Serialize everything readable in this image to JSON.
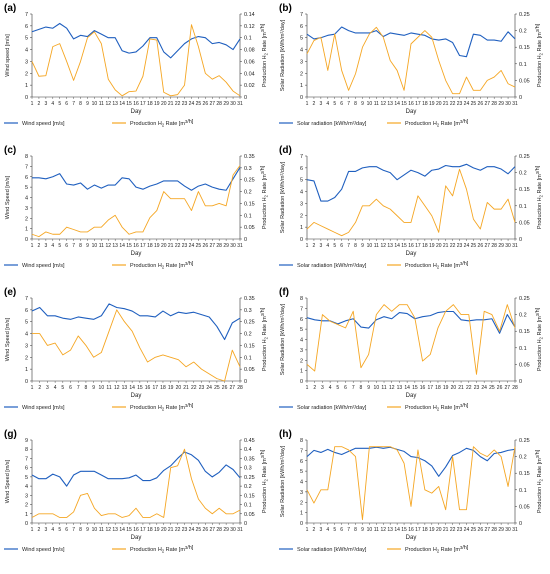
{
  "colors": {
    "primary": "#1f5fbf",
    "secondary": "#f5a623",
    "axis": "#333333",
    "grid": "#cccccc"
  },
  "x_label": "Day",
  "chart_data": [
    {
      "type": "line",
      "panel": "(a)",
      "legend": "bottom",
      "xlabel": "Day",
      "ylabel": "Wind speed [m/s]",
      "ylabel_right": "Production H2 Rate [m3/h]",
      "ylim": [
        0,
        7
      ],
      "yticks": [
        0,
        1,
        2,
        3,
        4,
        5,
        6,
        7
      ],
      "ylim_right": [
        0,
        0.14
      ],
      "yticks_right": [
        "0",
        "0.02",
        "0.04",
        "0.06",
        "0.08",
        "0.1",
        "0.12",
        "0.14"
      ],
      "x": [
        1,
        2,
        3,
        4,
        5,
        6,
        7,
        8,
        9,
        10,
        11,
        12,
        13,
        14,
        15,
        16,
        17,
        18,
        19,
        20,
        21,
        22,
        23,
        24,
        25,
        26,
        27,
        28,
        29,
        30,
        31
      ],
      "series": [
        {
          "name": "Wind speed [m/s]",
          "axis": "left",
          "color": "#1f5fbf",
          "values": [
            5.5,
            5.7,
            5.9,
            5.8,
            6.2,
            5.8,
            4.9,
            5.2,
            5.1,
            5.6,
            5.3,
            5.0,
            5.0,
            3.9,
            3.7,
            3.8,
            4.3,
            5.0,
            5.0,
            3.8,
            3.3,
            3.9,
            4.5,
            4.9,
            5.1,
            5.0,
            4.5,
            4.6,
            4.4,
            4.0,
            4.9
          ]
        },
        {
          "name": "Production H2 Rate [m3/h]",
          "axis": "right",
          "color": "#f5a623",
          "values": [
            0.06,
            0.035,
            0.036,
            0.085,
            0.09,
            0.06,
            0.028,
            0.06,
            0.1,
            0.11,
            0.09,
            0.03,
            0.012,
            0.002,
            0.009,
            0.01,
            0.035,
            0.098,
            0.096,
            0.008,
            0.002,
            0.004,
            0.02,
            0.122,
            0.085,
            0.04,
            0.03,
            0.036,
            0.025,
            0.01,
            0.002
          ]
        }
      ]
    },
    {
      "type": "line",
      "panel": "(b)",
      "legend": "bottom",
      "xlabel": "Day",
      "ylabel": "Solar Radiation [kWh/m²/day]",
      "ylabel_right": "Production H2 Rate [m3/h]",
      "ylim": [
        0,
        7
      ],
      "yticks": [
        0,
        1,
        2,
        3,
        4,
        5,
        6,
        7
      ],
      "ylim_right": [
        0,
        0.25
      ],
      "yticks_right": [
        "0",
        "0.05",
        "0.1",
        "0.15",
        "0.2",
        "0.25"
      ],
      "x": [
        1,
        2,
        3,
        4,
        5,
        6,
        7,
        8,
        9,
        10,
        11,
        12,
        13,
        14,
        15,
        16,
        17,
        18,
        19,
        20,
        21,
        22,
        23,
        24,
        25,
        26,
        27,
        28,
        29,
        30,
        31
      ],
      "series": [
        {
          "name": "Solar radiation [kWh/m²/day]",
          "axis": "left",
          "color": "#1f5fbf",
          "values": [
            5.3,
            4.9,
            5.0,
            5.2,
            5.3,
            5.9,
            5.6,
            5.4,
            5.4,
            5.4,
            5.6,
            5.1,
            5.4,
            5.3,
            5.2,
            5.4,
            5.3,
            5.2,
            4.9,
            4.8,
            4.9,
            4.6,
            3.5,
            3.4,
            5.3,
            5.2,
            4.8,
            4.8,
            4.7,
            5.5,
            4.9
          ]
        },
        {
          "name": "Production H2 Rate [m3/h]",
          "axis": "right",
          "color": "#f5a623",
          "values": [
            0.13,
            0.17,
            0.18,
            0.08,
            0.19,
            0.08,
            0.02,
            0.07,
            0.15,
            0.19,
            0.21,
            0.18,
            0.11,
            0.08,
            0.02,
            0.16,
            0.18,
            0.2,
            0.18,
            0.11,
            0.05,
            0.01,
            0.01,
            0.06,
            0.02,
            0.02,
            0.05,
            0.06,
            0.08,
            0.04,
            0.03
          ]
        }
      ]
    },
    {
      "type": "line",
      "panel": "(c)",
      "legend": "bottom",
      "xlabel": "Day",
      "ylabel": "Wind Speed [m/s]",
      "ylabel_right": "Production H2 Rate [m3/h]",
      "ylim": [
        0,
        8
      ],
      "yticks": [
        0,
        1,
        2,
        3,
        4,
        5,
        6,
        7,
        8
      ],
      "ylim_right": [
        0,
        0.35
      ],
      "yticks_right": [
        "0",
        "0.05",
        "0.1",
        "0.15",
        "0.2",
        "0.25",
        "0.3",
        "0.35"
      ],
      "x": [
        1,
        2,
        3,
        4,
        5,
        6,
        7,
        8,
        9,
        10,
        11,
        12,
        13,
        14,
        15,
        16,
        17,
        18,
        19,
        20,
        21,
        22,
        23,
        24,
        25,
        26,
        27,
        28,
        29,
        30,
        31
      ],
      "series": [
        {
          "name": "Wind speed [m/s]",
          "axis": "left",
          "color": "#1f5fbf",
          "values": [
            5.9,
            5.9,
            5.8,
            6.0,
            6.3,
            5.3,
            5.2,
            5.4,
            4.8,
            5.2,
            4.9,
            5.2,
            5.2,
            5.9,
            5.8,
            5.0,
            4.8,
            5.1,
            5.3,
            5.6,
            5.6,
            5.6,
            5.1,
            4.7,
            5.1,
            5.3,
            5.0,
            4.8,
            4.7,
            5.8,
            6.9
          ]
        },
        {
          "name": "Production H2 Rate [m3/h]",
          "axis": "right",
          "color": "#f5a623",
          "values": [
            0.02,
            0.01,
            0.03,
            0.02,
            0.02,
            0.05,
            0.04,
            0.03,
            0.03,
            0.05,
            0.05,
            0.08,
            0.1,
            0.05,
            0.02,
            0.03,
            0.03,
            0.09,
            0.12,
            0.2,
            0.17,
            0.17,
            0.17,
            0.12,
            0.2,
            0.14,
            0.14,
            0.15,
            0.14,
            0.27,
            0.31
          ]
        }
      ]
    },
    {
      "type": "line",
      "panel": "(d)",
      "legend": "bottom",
      "xlabel": "Day",
      "ylabel": "Solar Radiation [kWh/m²/day]",
      "ylabel_right": "Production H2 Rate [m3/h]",
      "ylim": [
        0,
        7
      ],
      "yticks": [
        0,
        1,
        2,
        3,
        4,
        5,
        6,
        7
      ],
      "ylim_right": [
        0,
        0.25
      ],
      "yticks_right": [
        "0",
        "0.05",
        "0.1",
        "0.15",
        "0.2",
        "0.25"
      ],
      "x": [
        1,
        2,
        3,
        4,
        5,
        6,
        7,
        8,
        9,
        10,
        11,
        12,
        13,
        14,
        15,
        16,
        17,
        18,
        19,
        20,
        21,
        22,
        23,
        24,
        25,
        26,
        27,
        28,
        29,
        30,
        31
      ],
      "series": [
        {
          "name": "Solar radiation [kWh/m²/day]",
          "axis": "left",
          "color": "#1f5fbf",
          "values": [
            5.0,
            4.9,
            3.2,
            3.2,
            3.5,
            4.2,
            5.7,
            5.7,
            6.0,
            6.1,
            6.1,
            5.8,
            5.6,
            5.0,
            5.4,
            5.8,
            5.6,
            5.3,
            5.8,
            5.9,
            6.2,
            6.1,
            6.1,
            6.3,
            6.0,
            5.8,
            6.1,
            6.1,
            5.9,
            5.5,
            6.1
          ]
        },
        {
          "name": "Production H2 Rate [m3/h]",
          "axis": "right",
          "color": "#f5a623",
          "values": [
            0.03,
            0.05,
            0.04,
            0.03,
            0.02,
            0.01,
            0.02,
            0.05,
            0.1,
            0.1,
            0.12,
            0.1,
            0.09,
            0.07,
            0.05,
            0.05,
            0.13,
            0.1,
            0.07,
            0.02,
            0.16,
            0.13,
            0.21,
            0.15,
            0.06,
            0.03,
            0.11,
            0.09,
            0.09,
            0.12,
            0.05
          ]
        }
      ]
    },
    {
      "type": "line",
      "panel": "(e)",
      "legend": "bottom",
      "xlabel": "Day",
      "ylabel": "Wind Speed [m/s]",
      "ylabel_right": "Production H2 Rate [m3/h]",
      "ylim": [
        0,
        7
      ],
      "yticks": [
        0,
        1,
        2,
        3,
        4,
        5,
        6,
        7
      ],
      "ylim_right": [
        0,
        0.35
      ],
      "yticks_right": [
        "0",
        "0.05",
        "0.1",
        "0.15",
        "0.2",
        "0.25",
        "0.3",
        "0.35"
      ],
      "x": [
        1,
        2,
        3,
        4,
        5,
        6,
        7,
        8,
        9,
        10,
        11,
        12,
        13,
        14,
        15,
        16,
        17,
        18,
        19,
        20,
        21,
        22,
        23,
        24,
        25,
        26,
        27,
        28
      ],
      "series": [
        {
          "name": "Wind speed [m/s]",
          "axis": "left",
          "color": "#1f5fbf",
          "values": [
            5.9,
            6.2,
            5.5,
            5.5,
            5.3,
            5.2,
            5.4,
            5.3,
            5.2,
            5.5,
            6.5,
            6.2,
            6.1,
            5.9,
            5.5,
            5.5,
            5.4,
            5.9,
            5.5,
            5.8,
            5.7,
            5.8,
            5.6,
            5.4,
            4.6,
            3.5,
            4.9,
            5.3
          ]
        },
        {
          "name": "Production H2 Rate [m3/h]",
          "axis": "right",
          "color": "#f5a623",
          "values": [
            0.2,
            0.2,
            0.15,
            0.16,
            0.11,
            0.13,
            0.19,
            0.15,
            0.1,
            0.12,
            0.21,
            0.3,
            0.25,
            0.21,
            0.14,
            0.08,
            0.1,
            0.11,
            0.1,
            0.09,
            0.06,
            0.08,
            0.05,
            0.03,
            0.01,
            0.0,
            0.13,
            0.06
          ]
        }
      ]
    },
    {
      "type": "line",
      "panel": "(f)",
      "legend": "bottom",
      "xlabel": "Day",
      "ylabel": "Solar Radiation [kWh/m²/day]",
      "ylabel_right": "Production H2 Rate [m3/h]",
      "ylim": [
        0,
        8
      ],
      "yticks": [
        0,
        1,
        2,
        3,
        4,
        5,
        6,
        7,
        8
      ],
      "ylim_right": [
        0,
        0.25
      ],
      "yticks_right": [
        "0",
        "0.05",
        "0.1",
        "0.15",
        "0.2",
        "0.25"
      ],
      "x": [
        1,
        2,
        3,
        4,
        5,
        6,
        7,
        8,
        9,
        10,
        11,
        12,
        13,
        14,
        15,
        16,
        17,
        18,
        19,
        20,
        21,
        22,
        23,
        24,
        25,
        26,
        27,
        28
      ],
      "series": [
        {
          "name": "Solar radiation [kWh/m²/day]",
          "axis": "left",
          "color": "#1f5fbf",
          "values": [
            6.1,
            5.9,
            5.8,
            5.8,
            5.5,
            5.8,
            6.0,
            5.2,
            5.1,
            5.9,
            6.2,
            6.0,
            6.6,
            6.5,
            6.0,
            6.2,
            6.3,
            6.6,
            6.7,
            6.7,
            5.9,
            5.8,
            5.9,
            5.9,
            6.0,
            4.6,
            6.4,
            5.2
          ]
        },
        {
          "name": "Production H2 Rate [m3/h]",
          "axis": "right",
          "color": "#f5a623",
          "values": [
            0.05,
            0.03,
            0.2,
            0.18,
            0.17,
            0.16,
            0.21,
            0.04,
            0.08,
            0.2,
            0.23,
            0.21,
            0.23,
            0.23,
            0.19,
            0.06,
            0.08,
            0.16,
            0.21,
            0.23,
            0.2,
            0.2,
            0.02,
            0.21,
            0.2,
            0.15,
            0.23,
            0.16
          ]
        }
      ]
    },
    {
      "type": "line",
      "panel": "(g)",
      "legend": "bottom",
      "xlabel": "Day",
      "ylabel": "Wind Speed [m/s]",
      "ylabel_right": "Production H2 Rate [m3/h]",
      "ylim": [
        0,
        9
      ],
      "yticks": [
        0,
        1,
        2,
        3,
        4,
        5,
        6,
        7,
        8,
        9
      ],
      "ylim_right": [
        0,
        0.45
      ],
      "yticks_right": [
        "0",
        "0.05",
        "0.1",
        "0.15",
        "0.2",
        "0.25",
        "0.3",
        "0.35",
        "0.4",
        "0.45"
      ],
      "x": [
        1,
        2,
        3,
        4,
        5,
        6,
        7,
        8,
        9,
        10,
        11,
        12,
        13,
        14,
        15,
        16,
        17,
        18,
        19,
        20,
        21,
        22,
        23,
        24,
        25,
        26,
        27,
        28,
        29,
        30,
        31
      ],
      "series": [
        {
          "name": "Wind speed [m/s]",
          "axis": "left",
          "color": "#1f5fbf",
          "values": [
            5.2,
            4.8,
            4.8,
            5.3,
            5.0,
            4.0,
            5.2,
            5.6,
            5.6,
            5.6,
            5.2,
            4.8,
            4.8,
            4.8,
            4.9,
            5.2,
            4.6,
            4.6,
            4.9,
            5.7,
            6.2,
            7.0,
            7.7,
            7.4,
            6.8,
            5.6,
            5.0,
            5.5,
            6.3,
            5.8,
            4.9
          ]
        },
        {
          "name": "Production H2 Rate [m3/h]",
          "axis": "right",
          "color": "#f5a623",
          "values": [
            0.03,
            0.05,
            0.05,
            0.05,
            0.03,
            0.03,
            0.06,
            0.15,
            0.16,
            0.08,
            0.04,
            0.05,
            0.05,
            0.03,
            0.04,
            0.08,
            0.03,
            0.03,
            0.05,
            0.03,
            0.3,
            0.31,
            0.4,
            0.24,
            0.13,
            0.08,
            0.05,
            0.08,
            0.05,
            0.05,
            0.07
          ]
        }
      ]
    },
    {
      "type": "line",
      "panel": "(h)",
      "legend": "bottom",
      "xlabel": "Day",
      "ylabel": "Solar Radiation [kWh/m²/day]",
      "ylabel_right": "Production H2 Rate [m3/h]",
      "ylim": [
        0,
        8
      ],
      "yticks": [
        0,
        1,
        2,
        3,
        4,
        5,
        6,
        7,
        8
      ],
      "ylim_right": [
        0,
        0.25
      ],
      "yticks_right": [
        "0",
        "0.05",
        "0.1",
        "0.15",
        "0.2",
        "0.25"
      ],
      "x": [
        1,
        2,
        3,
        4,
        5,
        6,
        7,
        8,
        9,
        10,
        11,
        12,
        13,
        14,
        15,
        16,
        17,
        18,
        19,
        20,
        21,
        22,
        23,
        24,
        25,
        26,
        27,
        28,
        29,
        30,
        31
      ],
      "series": [
        {
          "name": "Solar radiation [kWh/m²/day]",
          "axis": "left",
          "color": "#1f5fbf",
          "values": [
            6.4,
            7.0,
            6.8,
            7.1,
            6.8,
            6.6,
            6.9,
            7.2,
            7.2,
            7.2,
            7.3,
            7.2,
            7.3,
            7.1,
            6.9,
            6.4,
            6.3,
            6.0,
            5.5,
            4.5,
            5.4,
            6.5,
            6.8,
            7.2,
            7.0,
            6.4,
            6.0,
            6.7,
            6.8,
            7.0,
            7.1
          ]
        },
        {
          "name": "Production H2 Rate [m3/h]",
          "axis": "right",
          "color": "#f5a623",
          "values": [
            0.1,
            0.06,
            0.1,
            0.1,
            0.23,
            0.23,
            0.22,
            0.2,
            0.01,
            0.23,
            0.23,
            0.23,
            0.23,
            0.22,
            0.18,
            0.05,
            0.22,
            0.1,
            0.09,
            0.11,
            0.04,
            0.2,
            0.04,
            0.04,
            0.23,
            0.21,
            0.2,
            0.22,
            0.2,
            0.11,
            0.23
          ]
        }
      ]
    }
  ]
}
